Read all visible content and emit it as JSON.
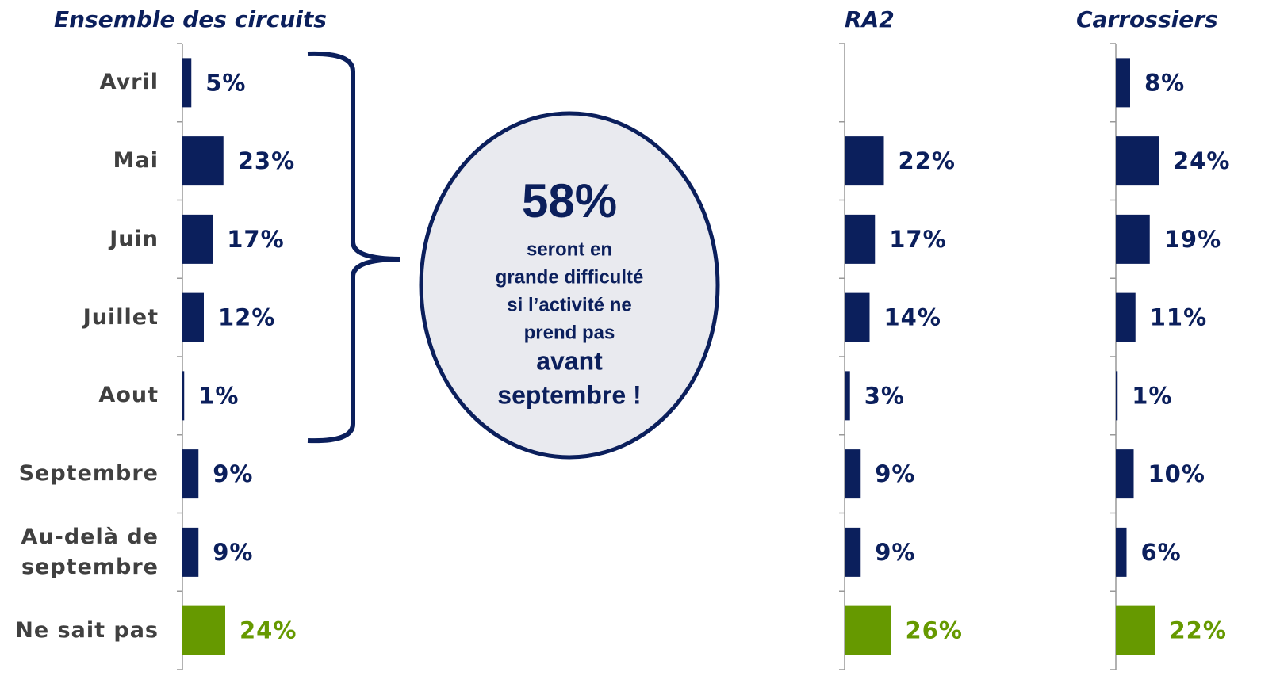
{
  "chart_data": {
    "type": "bar",
    "orientation": "horizontal",
    "categories": [
      "Avril",
      "Mai",
      "Juin",
      "Juillet",
      "Aout",
      "Septembre",
      "Au-delà de septembre",
      "Ne sait pas"
    ],
    "colors": [
      "#0b1f5c",
      "#0b1f5c",
      "#0b1f5c",
      "#0b1f5c",
      "#0b1f5c",
      "#0b1f5c",
      "#0b1f5c",
      "#669900"
    ],
    "series": [
      {
        "name": "Ensemble des circuits",
        "values": [
          5,
          23,
          17,
          12,
          1,
          9,
          9,
          24
        ],
        "value_labels": [
          "5%",
          "23%",
          "17%",
          "12%",
          "1%",
          "9%",
          "9%",
          "24%"
        ]
      },
      {
        "name": "RA2",
        "values": [
          null,
          22,
          17,
          14,
          3,
          9,
          9,
          26
        ],
        "value_labels": [
          null,
          "22%",
          "17%",
          "14%",
          "3%",
          "9%",
          "9%",
          "26%"
        ]
      },
      {
        "name": "Carrossiers",
        "values": [
          8,
          24,
          19,
          11,
          1,
          10,
          6,
          22
        ],
        "value_labels": [
          "8%",
          "24%",
          "19%",
          "11%",
          "1%",
          "10%",
          "6%",
          "22%"
        ]
      }
    ],
    "annotation": {
      "headline": "58%",
      "lines": [
        "seront en",
        "grande difficulté",
        "si l’activité ne",
        "prend pas"
      ],
      "emphasis": [
        "avant",
        "septembre !"
      ]
    }
  }
}
